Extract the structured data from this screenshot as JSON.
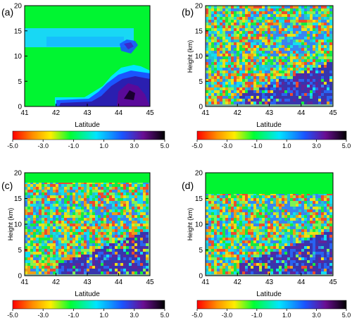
{
  "chart_data": [
    {
      "type": "heatmap",
      "panel_label": "(a)",
      "xlabel": "Latitude",
      "ylabel": "",
      "xlim": [
        41,
        45
      ],
      "ylim": [
        0,
        20
      ],
      "xticks": [
        "41",
        "42",
        "43",
        "44",
        "45"
      ],
      "yticks": [
        "0",
        "5",
        "10",
        "15",
        "20"
      ],
      "colorbar": {
        "range": [
          -5,
          5
        ],
        "ticks": [
          "-5.0",
          "-3.0",
          "-1.0",
          "1.0",
          "3.0",
          "5.0"
        ]
      }
    },
    {
      "type": "heatmap",
      "panel_label": "(b)",
      "xlabel": "Latitude",
      "ylabel": "Height (km)",
      "xlim": [
        41,
        45
      ],
      "ylim": [
        0,
        20
      ],
      "xticks": [
        "41",
        "42",
        "43",
        "44",
        "45"
      ],
      "yticks": [
        "0",
        "5",
        "10",
        "15",
        "20"
      ],
      "colorbar": {
        "range": [
          -5,
          5
        ],
        "ticks": [
          "-5.0",
          "-3.0",
          "-1.0",
          "1.0",
          "3.0",
          "5.0"
        ]
      }
    },
    {
      "type": "heatmap",
      "panel_label": "(c)",
      "xlabel": "Latitude",
      "ylabel": "Height (km)",
      "xlim": [
        41,
        45
      ],
      "ylim": [
        0,
        20
      ],
      "xticks": [
        "41",
        "42",
        "43",
        "44",
        "45"
      ],
      "yticks": [
        "0",
        "5",
        "10",
        "15",
        "20"
      ],
      "colorbar": {
        "range": [
          -5,
          5
        ],
        "ticks": [
          "-5.0",
          "-3.0",
          "-1.0",
          "1.0",
          "3.0",
          "5.0"
        ]
      }
    },
    {
      "type": "heatmap",
      "panel_label": "(d)",
      "xlabel": "Latitude",
      "ylabel": "Height (km)",
      "xlim": [
        41,
        45
      ],
      "ylim": [
        0,
        20
      ],
      "xticks": [
        "41",
        "42",
        "43",
        "44",
        "45"
      ],
      "yticks": [
        "0",
        "5",
        "10",
        "15",
        "20"
      ],
      "colorbar": {
        "range": [
          -5,
          5
        ],
        "ticks": [
          "-5.0",
          "-3.0",
          "-1.0",
          "1.0",
          "3.0",
          "5.0"
        ]
      }
    }
  ]
}
